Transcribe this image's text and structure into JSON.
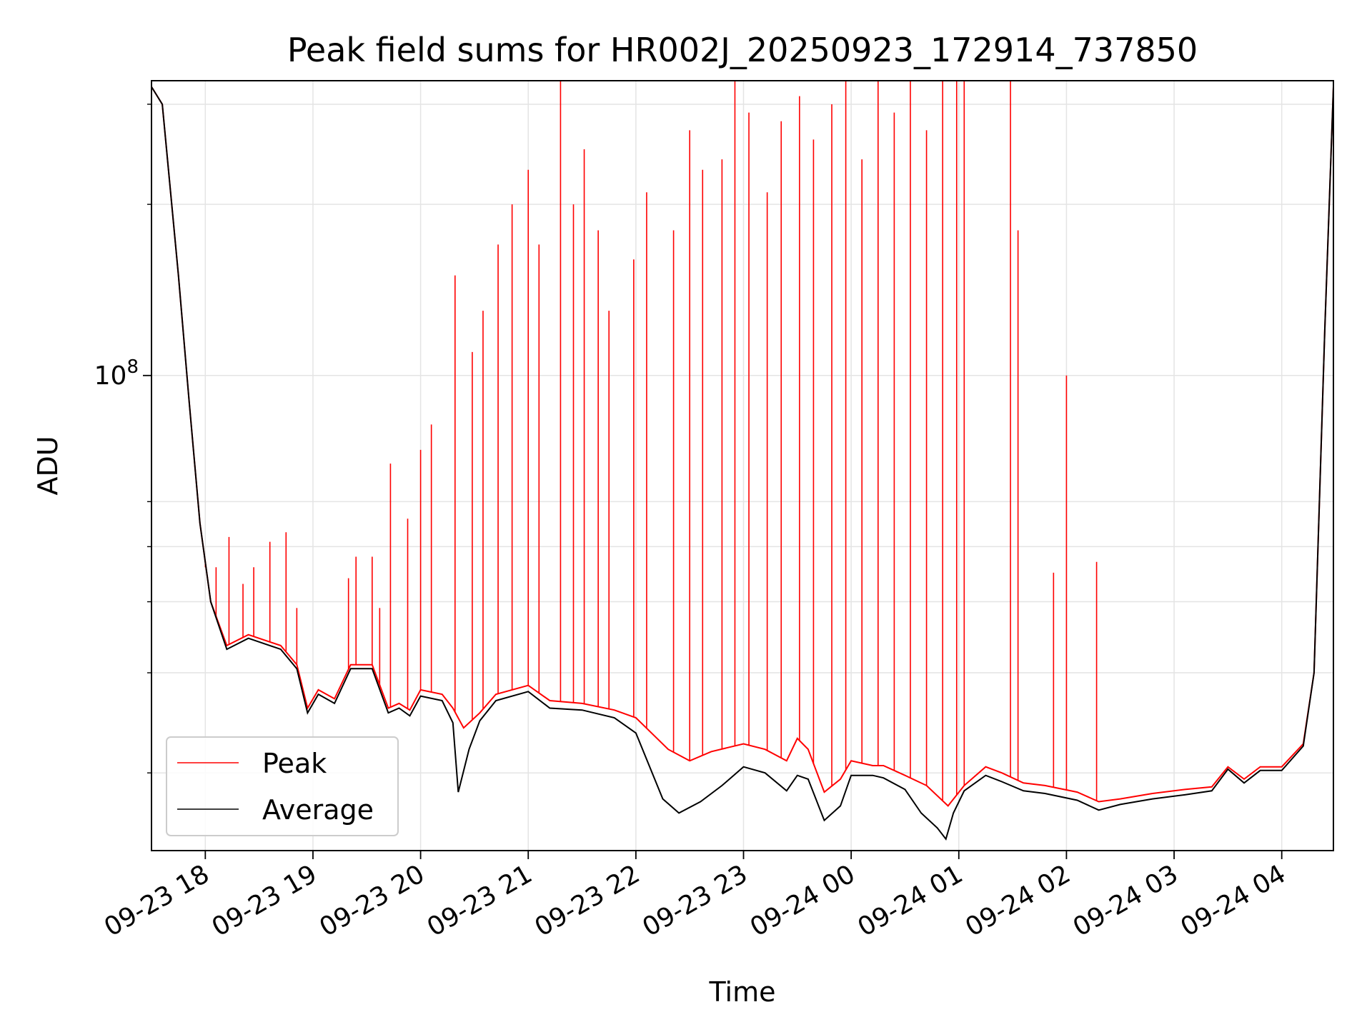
{
  "chart_data": {
    "type": "line",
    "title": "Peak field sums for HR002J_20250923_172914_737850",
    "xlabel": "Time",
    "ylabel": "ADU",
    "y_scale": "log",
    "y_tick_labels": [
      {
        "value": 100000000,
        "base": "10",
        "exponent": "8"
      }
    ],
    "x_tick_labels": [
      {
        "t": 0.5,
        "label": "09-23 18"
      },
      {
        "t": 1.5,
        "label": "09-23 19"
      },
      {
        "t": 2.5,
        "label": "09-23 20"
      },
      {
        "t": 3.5,
        "label": "09-23 21"
      },
      {
        "t": 4.5,
        "label": "09-23 22"
      },
      {
        "t": 5.5,
        "label": "09-23 23"
      },
      {
        "t": 6.5,
        "label": "09-24 00"
      },
      {
        "t": 7.5,
        "label": "09-24 01"
      },
      {
        "t": 8.5,
        "label": "09-24 02"
      },
      {
        "t": 9.5,
        "label": "09-24 03"
      },
      {
        "t": 10.5,
        "label": "09-24 04"
      }
    ],
    "x_range_hours": [
      0,
      10.98
    ],
    "y_range": [
      14600000,
      330000000
    ],
    "grid": true,
    "legend_position": "lower-left",
    "series": [
      {
        "name": "Peak",
        "color": "#ff0000",
        "baseline": [
          [
            0.0,
            322000000
          ],
          [
            0.1,
            300000000
          ],
          [
            0.25,
            150000000
          ],
          [
            0.35,
            90000000
          ],
          [
            0.45,
            55000000
          ],
          [
            0.55,
            40000000
          ],
          [
            0.7,
            33500000
          ],
          [
            0.9,
            35000000
          ],
          [
            1.2,
            33500000
          ],
          [
            1.35,
            31000000
          ],
          [
            1.45,
            26000000
          ],
          [
            1.55,
            28000000
          ],
          [
            1.7,
            27000000
          ],
          [
            1.85,
            31000000
          ],
          [
            2.05,
            31000000
          ],
          [
            2.2,
            26000000
          ],
          [
            2.3,
            26500000
          ],
          [
            2.4,
            25800000
          ],
          [
            2.5,
            28000000
          ],
          [
            2.7,
            27500000
          ],
          [
            2.8,
            26000000
          ],
          [
            2.9,
            24000000
          ],
          [
            3.05,
            25500000
          ],
          [
            3.2,
            27500000
          ],
          [
            3.5,
            28500000
          ],
          [
            3.7,
            26800000
          ],
          [
            4.0,
            26500000
          ],
          [
            4.3,
            25800000
          ],
          [
            4.5,
            25000000
          ],
          [
            4.8,
            22000000
          ],
          [
            5.0,
            21000000
          ],
          [
            5.2,
            21800000
          ],
          [
            5.5,
            22500000
          ],
          [
            5.7,
            22000000
          ],
          [
            5.9,
            21000000
          ],
          [
            6.0,
            23000000
          ],
          [
            6.1,
            22000000
          ],
          [
            6.25,
            18500000
          ],
          [
            6.4,
            19500000
          ],
          [
            6.5,
            21000000
          ],
          [
            6.7,
            20600000
          ],
          [
            6.8,
            20600000
          ],
          [
            7.0,
            19800000
          ],
          [
            7.2,
            19000000
          ],
          [
            7.4,
            17500000
          ],
          [
            7.55,
            19000000
          ],
          [
            7.75,
            20500000
          ],
          [
            7.9,
            20000000
          ],
          [
            8.1,
            19200000
          ],
          [
            8.3,
            19000000
          ],
          [
            8.6,
            18500000
          ],
          [
            8.8,
            17800000
          ],
          [
            9.0,
            18000000
          ],
          [
            9.3,
            18400000
          ],
          [
            9.6,
            18700000
          ],
          [
            9.85,
            18900000
          ],
          [
            10.0,
            20500000
          ],
          [
            10.15,
            19500000
          ],
          [
            10.3,
            20500000
          ],
          [
            10.5,
            20500000
          ],
          [
            10.7,
            22500000
          ],
          [
            10.8,
            30000000
          ],
          [
            10.9,
            120000000
          ],
          [
            10.98,
            322000000
          ]
        ],
        "spikes": [
          [
            0.5,
            46000000
          ],
          [
            0.6,
            46000000
          ],
          [
            0.72,
            52000000
          ],
          [
            0.85,
            43000000
          ],
          [
            0.95,
            46000000
          ],
          [
            1.1,
            51000000
          ],
          [
            1.25,
            53000000
          ],
          [
            1.35,
            39000000
          ],
          [
            1.83,
            44000000
          ],
          [
            1.9,
            48000000
          ],
          [
            2.05,
            48000000
          ],
          [
            2.12,
            39000000
          ],
          [
            2.22,
            70000000
          ],
          [
            2.38,
            56000000
          ],
          [
            2.5,
            74000000
          ],
          [
            2.6,
            82000000
          ],
          [
            2.82,
            150000000
          ],
          [
            2.98,
            110000000
          ],
          [
            3.08,
            130000000
          ],
          [
            3.22,
            170000000
          ],
          [
            3.35,
            200000000
          ],
          [
            3.5,
            230000000
          ],
          [
            3.6,
            170000000
          ],
          [
            3.8,
            330000000
          ],
          [
            3.92,
            200000000
          ],
          [
            4.02,
            250000000
          ],
          [
            4.15,
            180000000
          ],
          [
            4.25,
            130000000
          ],
          [
            4.48,
            160000000
          ],
          [
            4.6,
            210000000
          ],
          [
            4.85,
            180000000
          ],
          [
            5.0,
            270000000
          ],
          [
            5.12,
            230000000
          ],
          [
            5.3,
            240000000
          ],
          [
            5.42,
            330000000
          ],
          [
            5.55,
            290000000
          ],
          [
            5.72,
            210000000
          ],
          [
            5.85,
            280000000
          ],
          [
            6.02,
            310000000
          ],
          [
            6.15,
            260000000
          ],
          [
            6.32,
            300000000
          ],
          [
            6.45,
            330000000
          ],
          [
            6.6,
            240000000
          ],
          [
            6.75,
            330000000
          ],
          [
            6.9,
            290000000
          ],
          [
            7.05,
            330000000
          ],
          [
            7.2,
            270000000
          ],
          [
            7.35,
            330000000
          ],
          [
            7.48,
            330000000
          ],
          [
            7.55,
            330000000
          ],
          [
            7.98,
            330000000
          ],
          [
            8.05,
            180000000
          ],
          [
            8.38,
            45000000
          ],
          [
            8.5,
            100000000
          ],
          [
            8.78,
            47000000
          ]
        ]
      },
      {
        "name": "Average",
        "color": "#000000",
        "points": [
          [
            0.0,
            322000000
          ],
          [
            0.1,
            300000000
          ],
          [
            0.25,
            150000000
          ],
          [
            0.35,
            90000000
          ],
          [
            0.45,
            55000000
          ],
          [
            0.55,
            40000000
          ],
          [
            0.7,
            33000000
          ],
          [
            0.9,
            34500000
          ],
          [
            1.2,
            33000000
          ],
          [
            1.35,
            30500000
          ],
          [
            1.45,
            25500000
          ],
          [
            1.55,
            27500000
          ],
          [
            1.7,
            26500000
          ],
          [
            1.85,
            30500000
          ],
          [
            2.05,
            30500000
          ],
          [
            2.2,
            25500000
          ],
          [
            2.3,
            26000000
          ],
          [
            2.4,
            25200000
          ],
          [
            2.5,
            27300000
          ],
          [
            2.7,
            26800000
          ],
          [
            2.8,
            24500000
          ],
          [
            2.85,
            18500000
          ],
          [
            2.95,
            22000000
          ],
          [
            3.05,
            24700000
          ],
          [
            3.2,
            26800000
          ],
          [
            3.5,
            27800000
          ],
          [
            3.7,
            26000000
          ],
          [
            4.0,
            25800000
          ],
          [
            4.3,
            25000000
          ],
          [
            4.5,
            23500000
          ],
          [
            4.75,
            18000000
          ],
          [
            4.9,
            17000000
          ],
          [
            5.1,
            17800000
          ],
          [
            5.3,
            19000000
          ],
          [
            5.5,
            20500000
          ],
          [
            5.7,
            20000000
          ],
          [
            5.9,
            18600000
          ],
          [
            6.0,
            19800000
          ],
          [
            6.1,
            19500000
          ],
          [
            6.25,
            16500000
          ],
          [
            6.4,
            17500000
          ],
          [
            6.5,
            19800000
          ],
          [
            6.7,
            19800000
          ],
          [
            6.8,
            19600000
          ],
          [
            7.0,
            18700000
          ],
          [
            7.15,
            17000000
          ],
          [
            7.3,
            16000000
          ],
          [
            7.38,
            15300000
          ],
          [
            7.45,
            17000000
          ],
          [
            7.55,
            18600000
          ],
          [
            7.75,
            19800000
          ],
          [
            7.9,
            19300000
          ],
          [
            8.1,
            18600000
          ],
          [
            8.3,
            18400000
          ],
          [
            8.6,
            17900000
          ],
          [
            8.8,
            17200000
          ],
          [
            9.0,
            17600000
          ],
          [
            9.3,
            18000000
          ],
          [
            9.6,
            18300000
          ],
          [
            9.85,
            18600000
          ],
          [
            10.0,
            20300000
          ],
          [
            10.15,
            19200000
          ],
          [
            10.3,
            20200000
          ],
          [
            10.5,
            20200000
          ],
          [
            10.7,
            22300000
          ],
          [
            10.8,
            30000000
          ],
          [
            10.9,
            120000000
          ],
          [
            10.98,
            322000000
          ]
        ]
      }
    ]
  }
}
